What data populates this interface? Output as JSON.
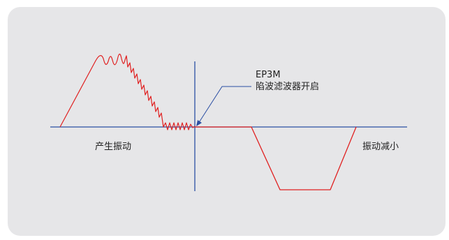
{
  "labels": {
    "left_caption": "产生振动",
    "right_caption": "振动减小",
    "annotation_line1": "EP3M",
    "annotation_line2": "陷波滤波器开启"
  },
  "colors": {
    "panel": "#e6e6e8",
    "axis": "#2b4fa3",
    "waveform": "#e02020",
    "text": "#222222"
  }
}
